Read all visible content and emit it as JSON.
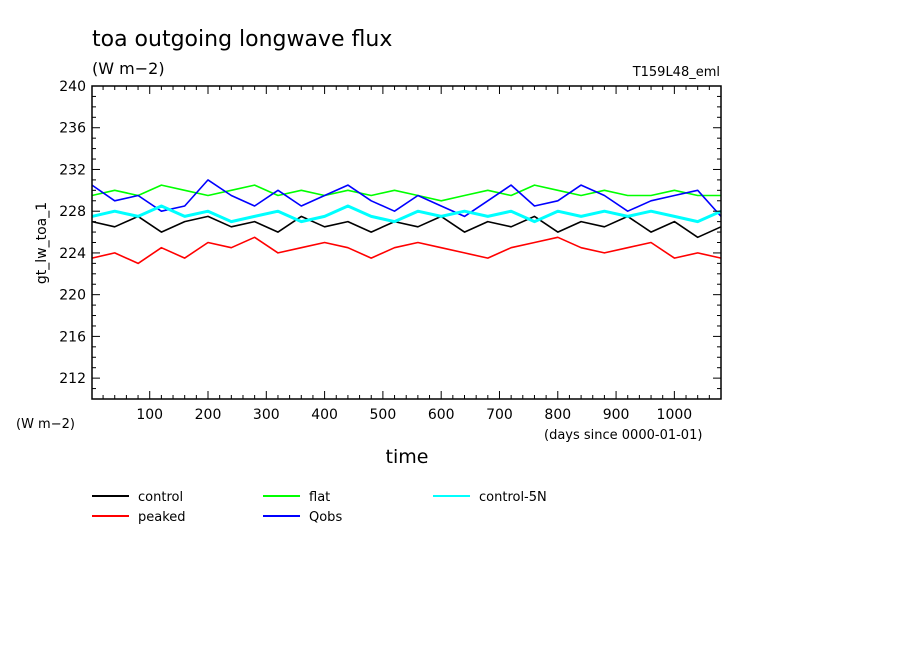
{
  "chart_data": {
    "type": "line",
    "title": "toa outgoing longwave flux",
    "subtitle": "(W m−2)",
    "run_label": "T159L48_eml",
    "xlabel": "time",
    "x_units": "(days since 0000-01-01)",
    "ylabel": "gt_lw_toa_1",
    "y_units": "(W m−2)",
    "xlim": [
      1,
      1080
    ],
    "ylim": [
      210,
      240
    ],
    "x_ticks": [
      "100",
      "200",
      "300",
      "400",
      "500",
      "600",
      "700",
      "800",
      "900",
      "1000"
    ],
    "y_ticks": [
      "212",
      "216",
      "220",
      "224",
      "228",
      "232",
      "236",
      "240"
    ],
    "legend_position": "bottom",
    "x": [
      1,
      40,
      80,
      120,
      160,
      200,
      240,
      280,
      320,
      360,
      400,
      440,
      480,
      520,
      560,
      600,
      640,
      680,
      720,
      760,
      800,
      840,
      880,
      920,
      960,
      1000,
      1040,
      1080
    ],
    "series": [
      {
        "name": "control",
        "color": "#000000",
        "values": [
          227.0,
          226.5,
          227.5,
          226.0,
          227.0,
          227.5,
          226.5,
          227.0,
          226.0,
          227.5,
          226.5,
          227.0,
          226.0,
          227.0,
          226.5,
          227.5,
          226.0,
          227.0,
          226.5,
          227.5,
          226.0,
          227.0,
          226.5,
          227.5,
          226.0,
          227.0,
          225.5,
          226.5
        ]
      },
      {
        "name": "peaked",
        "color": "#ff0000",
        "values": [
          223.5,
          224.0,
          223.0,
          224.5,
          223.5,
          225.0,
          224.5,
          225.5,
          224.0,
          224.5,
          225.0,
          224.5,
          223.5,
          224.5,
          225.0,
          224.5,
          224.0,
          223.5,
          224.5,
          225.0,
          225.5,
          224.5,
          224.0,
          224.5,
          225.0,
          223.5,
          224.0,
          223.5
        ]
      },
      {
        "name": "flat",
        "color": "#00ff00",
        "values": [
          229.5,
          230.0,
          229.5,
          230.5,
          230.0,
          229.5,
          230.0,
          230.5,
          229.5,
          230.0,
          229.5,
          230.0,
          229.5,
          230.0,
          229.5,
          229.0,
          229.5,
          230.0,
          229.5,
          230.5,
          230.0,
          229.5,
          230.0,
          229.5,
          229.5,
          230.0,
          229.5,
          229.5
        ]
      },
      {
        "name": "Qobs",
        "color": "#0000ff",
        "values": [
          230.5,
          229.0,
          229.5,
          228.0,
          228.5,
          231.0,
          229.5,
          228.5,
          230.0,
          228.5,
          229.5,
          230.5,
          229.0,
          228.0,
          229.5,
          228.5,
          227.5,
          229.0,
          230.5,
          228.5,
          229.0,
          230.5,
          229.5,
          228.0,
          229.0,
          229.5,
          230.0,
          227.5
        ]
      },
      {
        "name": "control-5N",
        "color": "#00ffff",
        "values": [
          227.5,
          228.0,
          227.5,
          228.5,
          227.5,
          228.0,
          227.0,
          227.5,
          228.0,
          227.0,
          227.5,
          228.5,
          227.5,
          227.0,
          228.0,
          227.5,
          228.0,
          227.5,
          228.0,
          227.0,
          228.0,
          227.5,
          228.0,
          227.5,
          228.0,
          227.5,
          227.0,
          228.0
        ]
      }
    ]
  }
}
